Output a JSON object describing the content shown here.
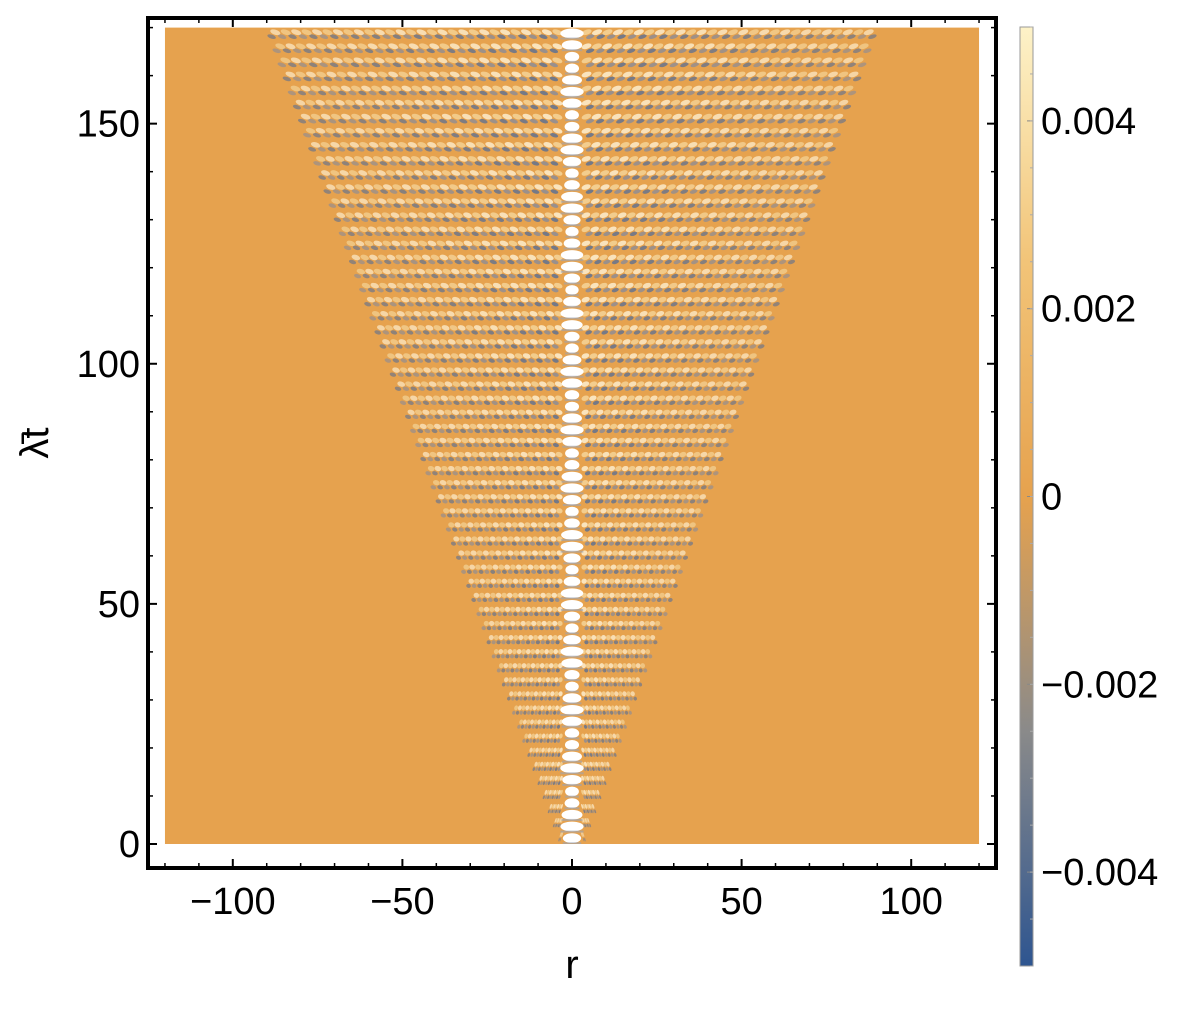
{
  "chart_data": {
    "type": "heatmap",
    "title": "",
    "xlabel": "r",
    "ylabel": "λ̄t",
    "xlim": [
      -125,
      125
    ],
    "ylim": [
      -5,
      172
    ],
    "data_extent": {
      "x": [
        -120,
        120
      ],
      "y": [
        0,
        170
      ]
    },
    "x_ticks": [
      {
        "value": -100,
        "label": "−100"
      },
      {
        "value": -50,
        "label": "−50"
      },
      {
        "value": 0,
        "label": "0"
      },
      {
        "value": 50,
        "label": "50"
      },
      {
        "value": 100,
        "label": "100"
      }
    ],
    "y_ticks": [
      {
        "value": 0,
        "label": "0"
      },
      {
        "value": 50,
        "label": "50"
      },
      {
        "value": 100,
        "label": "100"
      },
      {
        "value": 150,
        "label": "150"
      }
    ],
    "colorbar": {
      "range": [
        -0.005,
        0.005
      ],
      "ticks": [
        {
          "value": 0.004,
          "label": "0.004"
        },
        {
          "value": 0.002,
          "label": "0.002"
        },
        {
          "value": 0,
          "label": "0"
        },
        {
          "value": -0.002,
          "label": "−0.002"
        },
        {
          "value": -0.004,
          "label": "−0.004"
        }
      ],
      "colors": [
        "#2e5590",
        "#8a8a8a",
        "#e6a24e",
        "#f2c478",
        "#fdf2c8"
      ]
    },
    "field": {
      "background_color": "#e6a24e",
      "cone_half_width_at_top": 90,
      "core_half_width": 3,
      "wave_rows": 58,
      "wave_cells_per_side": 26
    },
    "grid": false
  }
}
